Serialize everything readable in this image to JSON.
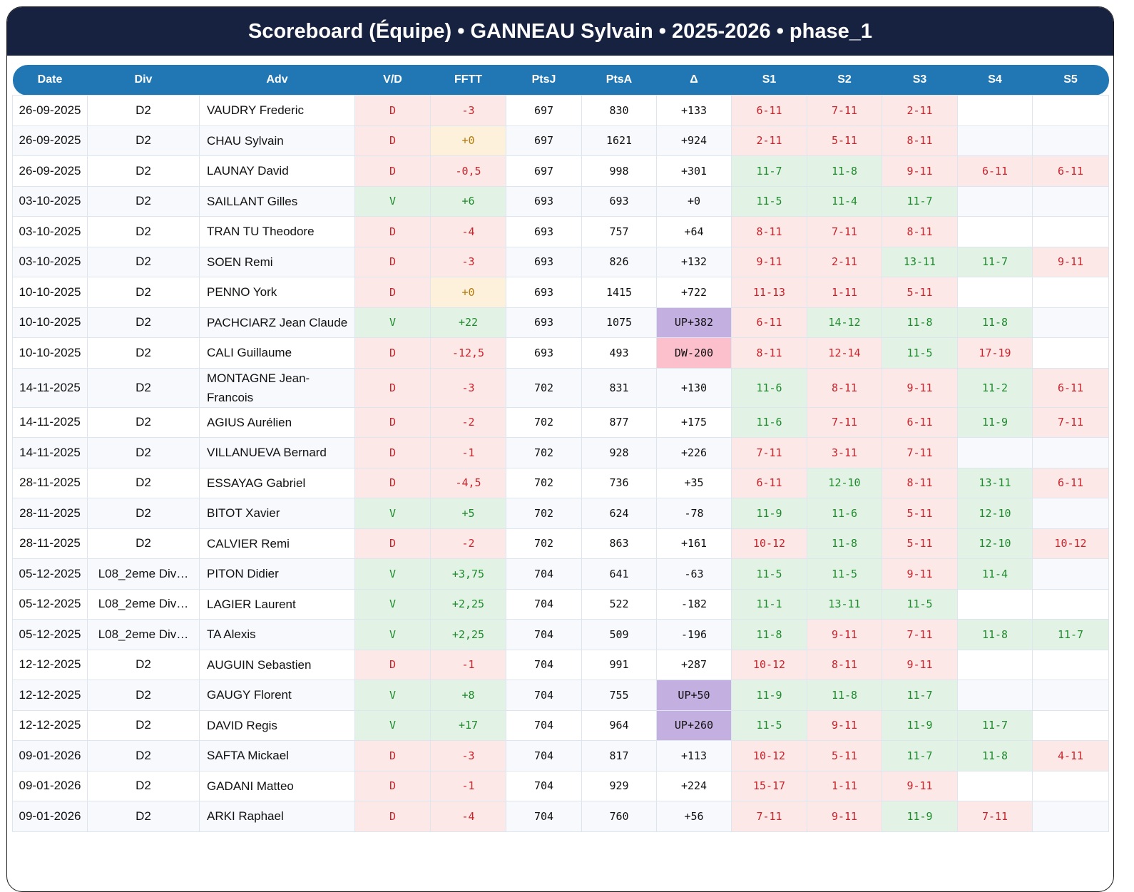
{
  "title": "Scoreboard (Équipe) • GANNEAU Sylvain • 2025-2026 • phase_1",
  "colors": {
    "header_bg": "#16223f",
    "table_header_bg": "#2177b4",
    "win": "#1f8a2c",
    "loss": "#c8242b",
    "neutral": "#b47a0b",
    "up": "#c4b0e0",
    "down": "#fcbfcc"
  },
  "columns": [
    "Date",
    "Div",
    "Adv",
    "V/D",
    "FFTT",
    "PtsJ",
    "PtsA",
    "Δ",
    "S1",
    "S2",
    "S3",
    "S4",
    "S5"
  ],
  "rows": [
    {
      "date": "26-09-2025",
      "div": "D2",
      "adv": "VAUDRY Frederic",
      "vd": "D",
      "fftt": "-3",
      "ptsj": "697",
      "ptsa": "830",
      "delta": "+133",
      "sets": [
        "6-11",
        "7-11",
        "2-11",
        "",
        ""
      ]
    },
    {
      "date": "26-09-2025",
      "div": "D2",
      "adv": "CHAU Sylvain",
      "vd": "D",
      "fftt": "+0",
      "ptsj": "697",
      "ptsa": "1621",
      "delta": "+924",
      "sets": [
        "2-11",
        "5-11",
        "8-11",
        "",
        ""
      ]
    },
    {
      "date": "26-09-2025",
      "div": "D2",
      "adv": "LAUNAY David",
      "vd": "D",
      "fftt": "-0,5",
      "ptsj": "697",
      "ptsa": "998",
      "delta": "+301",
      "sets": [
        "11-7",
        "11-8",
        "9-11",
        "6-11",
        "6-11"
      ]
    },
    {
      "date": "03-10-2025",
      "div": "D2",
      "adv": "SAILLANT Gilles",
      "vd": "V",
      "fftt": "+6",
      "ptsj": "693",
      "ptsa": "693",
      "delta": "+0",
      "sets": [
        "11-5",
        "11-4",
        "11-7",
        "",
        ""
      ]
    },
    {
      "date": "03-10-2025",
      "div": "D2",
      "adv": "TRAN TU Theodore",
      "vd": "D",
      "fftt": "-4",
      "ptsj": "693",
      "ptsa": "757",
      "delta": "+64",
      "sets": [
        "8-11",
        "7-11",
        "8-11",
        "",
        ""
      ]
    },
    {
      "date": "03-10-2025",
      "div": "D2",
      "adv": "SOEN Remi",
      "vd": "D",
      "fftt": "-3",
      "ptsj": "693",
      "ptsa": "826",
      "delta": "+132",
      "sets": [
        "9-11",
        "2-11",
        "13-11",
        "11-7",
        "9-11"
      ]
    },
    {
      "date": "10-10-2025",
      "div": "D2",
      "adv": "PENNO York",
      "vd": "D",
      "fftt": "+0",
      "ptsj": "693",
      "ptsa": "1415",
      "delta": "+722",
      "sets": [
        "11-13",
        "1-11",
        "5-11",
        "",
        ""
      ]
    },
    {
      "date": "10-10-2025",
      "div": "D2",
      "adv": "PACHCIARZ Jean Claude",
      "vd": "V",
      "fftt": "+22",
      "ptsj": "693",
      "ptsa": "1075",
      "delta": "UP+382",
      "sets": [
        "6-11",
        "14-12",
        "11-8",
        "11-8",
        ""
      ]
    },
    {
      "date": "10-10-2025",
      "div": "D2",
      "adv": "CALI Guillaume",
      "vd": "D",
      "fftt": "-12,5",
      "ptsj": "693",
      "ptsa": "493",
      "delta": "DW-200",
      "sets": [
        "8-11",
        "12-14",
        "11-5",
        "17-19",
        ""
      ]
    },
    {
      "date": "14-11-2025",
      "div": "D2",
      "adv": "MONTAGNE Jean-Francois",
      "vd": "D",
      "fftt": "-3",
      "ptsj": "702",
      "ptsa": "831",
      "delta": "+130",
      "sets": [
        "11-6",
        "8-11",
        "9-11",
        "11-2",
        "6-11"
      ]
    },
    {
      "date": "14-11-2025",
      "div": "D2",
      "adv": "AGIUS Aurélien",
      "vd": "D",
      "fftt": "-2",
      "ptsj": "702",
      "ptsa": "877",
      "delta": "+175",
      "sets": [
        "11-6",
        "7-11",
        "6-11",
        "11-9",
        "7-11"
      ]
    },
    {
      "date": "14-11-2025",
      "div": "D2",
      "adv": "VILLANUEVA Bernard",
      "vd": "D",
      "fftt": "-1",
      "ptsj": "702",
      "ptsa": "928",
      "delta": "+226",
      "sets": [
        "7-11",
        "3-11",
        "7-11",
        "",
        ""
      ]
    },
    {
      "date": "28-11-2025",
      "div": "D2",
      "adv": "ESSAYAG Gabriel",
      "vd": "D",
      "fftt": "-4,5",
      "ptsj": "702",
      "ptsa": "736",
      "delta": "+35",
      "sets": [
        "6-11",
        "12-10",
        "8-11",
        "13-11",
        "6-11"
      ]
    },
    {
      "date": "28-11-2025",
      "div": "D2",
      "adv": "BITOT Xavier",
      "vd": "V",
      "fftt": "+5",
      "ptsj": "702",
      "ptsa": "624",
      "delta": "-78",
      "sets": [
        "11-9",
        "11-6",
        "5-11",
        "12-10",
        ""
      ]
    },
    {
      "date": "28-11-2025",
      "div": "D2",
      "adv": "CALVIER Remi",
      "vd": "D",
      "fftt": "-2",
      "ptsj": "702",
      "ptsa": "863",
      "delta": "+161",
      "sets": [
        "10-12",
        "11-8",
        "5-11",
        "12-10",
        "10-12"
      ]
    },
    {
      "date": "05-12-2025",
      "div": "L08_2eme Div…",
      "adv": "PITON Didier",
      "vd": "V",
      "fftt": "+3,75",
      "ptsj": "704",
      "ptsa": "641",
      "delta": "-63",
      "sets": [
        "11-5",
        "11-5",
        "9-11",
        "11-4",
        ""
      ]
    },
    {
      "date": "05-12-2025",
      "div": "L08_2eme Div…",
      "adv": "LAGIER Laurent",
      "vd": "V",
      "fftt": "+2,25",
      "ptsj": "704",
      "ptsa": "522",
      "delta": "-182",
      "sets": [
        "11-1",
        "13-11",
        "11-5",
        "",
        ""
      ]
    },
    {
      "date": "05-12-2025",
      "div": "L08_2eme Div…",
      "adv": "TA Alexis",
      "vd": "V",
      "fftt": "+2,25",
      "ptsj": "704",
      "ptsa": "509",
      "delta": "-196",
      "sets": [
        "11-8",
        "9-11",
        "7-11",
        "11-8",
        "11-7"
      ]
    },
    {
      "date": "12-12-2025",
      "div": "D2",
      "adv": "AUGUIN Sebastien",
      "vd": "D",
      "fftt": "-1",
      "ptsj": "704",
      "ptsa": "991",
      "delta": "+287",
      "sets": [
        "10-12",
        "8-11",
        "9-11",
        "",
        ""
      ]
    },
    {
      "date": "12-12-2025",
      "div": "D2",
      "adv": "GAUGY Florent",
      "vd": "V",
      "fftt": "+8",
      "ptsj": "704",
      "ptsa": "755",
      "delta": "UP+50",
      "sets": [
        "11-9",
        "11-8",
        "11-7",
        "",
        ""
      ]
    },
    {
      "date": "12-12-2025",
      "div": "D2",
      "adv": "DAVID Regis",
      "vd": "V",
      "fftt": "+17",
      "ptsj": "704",
      "ptsa": "964",
      "delta": "UP+260",
      "sets": [
        "11-5",
        "9-11",
        "11-9",
        "11-7",
        ""
      ]
    },
    {
      "date": "09-01-2026",
      "div": "D2",
      "adv": "SAFTA Mickael",
      "vd": "D",
      "fftt": "-3",
      "ptsj": "704",
      "ptsa": "817",
      "delta": "+113",
      "sets": [
        "10-12",
        "5-11",
        "11-7",
        "11-8",
        "4-11"
      ]
    },
    {
      "date": "09-01-2026",
      "div": "D2",
      "adv": "GADANI Matteo",
      "vd": "D",
      "fftt": "-1",
      "ptsj": "704",
      "ptsa": "929",
      "delta": "+224",
      "sets": [
        "15-17",
        "1-11",
        "9-11",
        "",
        ""
      ]
    },
    {
      "date": "09-01-2026",
      "div": "D2",
      "adv": "ARKI Raphael",
      "vd": "D",
      "fftt": "-4",
      "ptsj": "704",
      "ptsa": "760",
      "delta": "+56",
      "sets": [
        "7-11",
        "9-11",
        "11-9",
        "7-11",
        ""
      ]
    }
  ]
}
